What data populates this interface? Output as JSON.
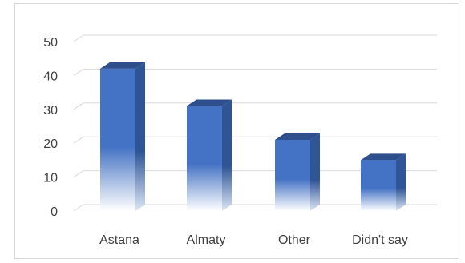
{
  "chart_data": {
    "type": "bar",
    "style": "3d-column",
    "categories": [
      "Astana",
      "Almaty",
      "Other",
      "Didn't say"
    ],
    "values": [
      42,
      31,
      21,
      15
    ],
    "yticks": [
      0,
      10,
      20,
      30,
      40,
      50
    ],
    "ylim": [
      0,
      50
    ],
    "grid": true,
    "legend": "none",
    "colors": {
      "front": "#4472c4",
      "side": "#2f5597",
      "top": "#2e4f8c",
      "grid": "#d9d9d9"
    }
  }
}
